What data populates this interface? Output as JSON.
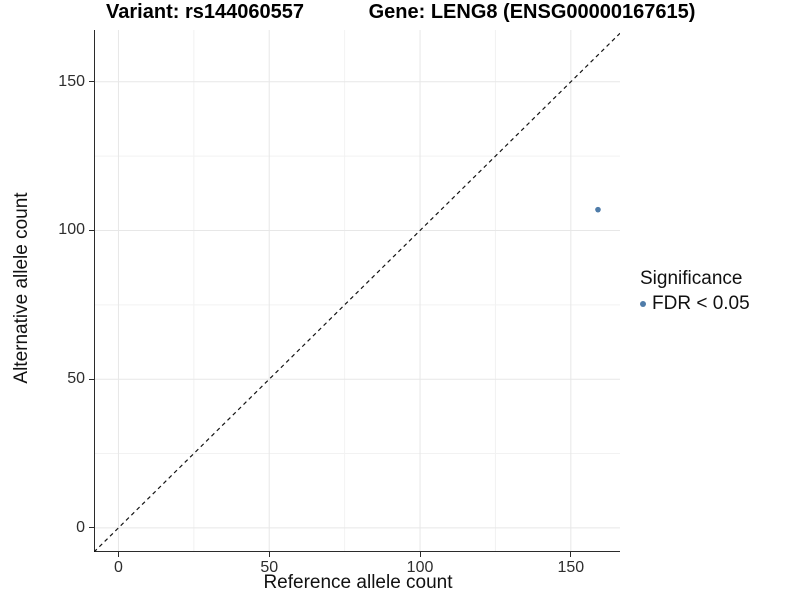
{
  "chart_data": {
    "type": "scatter",
    "title_left": "Variant: rs144060557",
    "title_right": "Gene: LENG8 (ENSG00000167615)",
    "xlabel": "Reference allele count",
    "ylabel": "Alternative allele count",
    "xlim": [
      -8.1,
      166.3
    ],
    "ylim": [
      -8.1,
      167.4
    ],
    "x_ticks": [
      0,
      50,
      100,
      150
    ],
    "y_ticks": [
      0,
      50,
      100,
      150
    ],
    "x_minor_ticks": [
      25,
      75,
      125
    ],
    "y_minor_ticks": [
      25,
      75,
      125
    ],
    "grid": "major and minor gridlines on white background",
    "identity_line": {
      "slope": 1,
      "intercept": 0,
      "style": "dashed",
      "color": "#141414"
    },
    "points": [
      {
        "x": 159,
        "y": 107,
        "significance": "FDR < 0.05",
        "color": "#4f7ca9"
      }
    ],
    "legend": {
      "title": "Significance",
      "position": "right",
      "entries": [
        {
          "label": "FDR < 0.05",
          "color": "#4f7ca9",
          "marker": "dot"
        }
      ]
    },
    "colors": {
      "point": "#4f7ca9",
      "major_grid": "#e7e7e7",
      "minor_grid": "#f2f2f2",
      "axis_line": "#2b2b2b",
      "title_text": "#000000",
      "tick_text": "#2e2e2e"
    }
  }
}
